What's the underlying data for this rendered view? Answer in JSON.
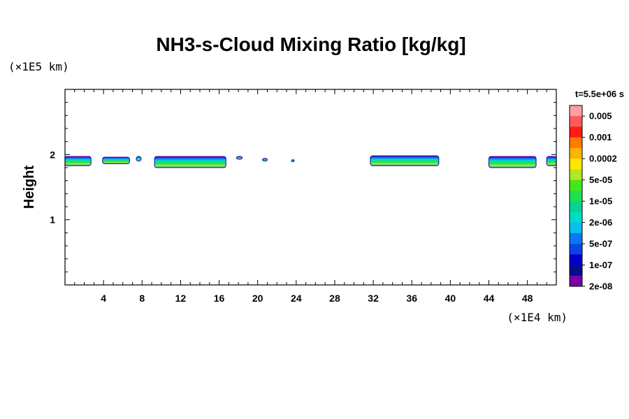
{
  "chart_data": {
    "type": "heatmap",
    "title": "NH3-s-Cloud Mixing Ratio [kg/kg]",
    "ylabel": "Height",
    "x_scale_note": "(×1E4 km)",
    "y_scale_note": "(×1E5 km)",
    "time_label": "t=5.5e+06 s",
    "xlim": [
      0,
      51
    ],
    "ylim": [
      0,
      3
    ],
    "x_ticks": [
      4,
      8,
      12,
      16,
      20,
      24,
      28,
      32,
      36,
      40,
      44,
      48
    ],
    "y_ticks": [
      1,
      2
    ],
    "colorbar": {
      "labels": [
        "0.005",
        "0.001",
        "0.0002",
        "5e-05",
        "1e-05",
        "2e-06",
        "5e-07",
        "1e-07",
        "2e-08"
      ],
      "colors": [
        "#ff9e9e",
        "#ff5a5a",
        "#ff1a1a",
        "#ff7a00",
        "#ffb400",
        "#ffe600",
        "#b4e61e",
        "#46e61e",
        "#1ee14b",
        "#0ad296",
        "#00dcc8",
        "#0abef0",
        "#0a78f0",
        "#0a46e6",
        "#0000c8",
        "#0a0a8c",
        "#7800aa"
      ]
    },
    "cloud_segments": [
      {
        "x_start": 0.0,
        "x_end": 2.7,
        "y_bottom": 1.83,
        "y_top": 1.97
      },
      {
        "x_start": 3.9,
        "x_end": 6.7,
        "y_bottom": 1.86,
        "y_top": 1.96
      },
      {
        "x_start": 7.4,
        "x_end": 7.9,
        "y_bottom": 1.9,
        "y_top": 1.97
      },
      {
        "x_start": 9.3,
        "x_end": 16.7,
        "y_bottom": 1.8,
        "y_top": 1.97
      },
      {
        "x_start": 17.8,
        "x_end": 18.4,
        "y_bottom": 1.93,
        "y_top": 1.97
      },
      {
        "x_start": 20.5,
        "x_end": 21.0,
        "y_bottom": 1.9,
        "y_top": 1.94
      },
      {
        "x_start": 23.5,
        "x_end": 23.8,
        "y_bottom": 1.89,
        "y_top": 1.92
      },
      {
        "x_start": 31.7,
        "x_end": 38.8,
        "y_bottom": 1.83,
        "y_top": 1.98
      },
      {
        "x_start": 44.0,
        "x_end": 48.9,
        "y_bottom": 1.8,
        "y_top": 1.97
      },
      {
        "x_start": 50.0,
        "x_end": 51.0,
        "y_bottom": 1.83,
        "y_top": 1.97
      }
    ]
  }
}
